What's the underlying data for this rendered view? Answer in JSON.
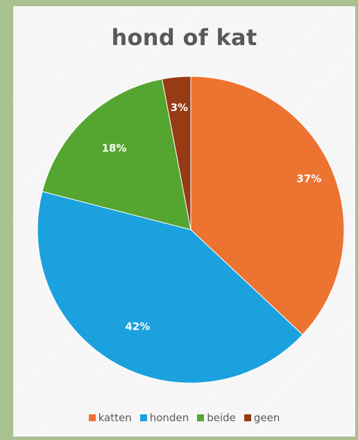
{
  "chart_data": {
    "type": "pie",
    "title": "hond of kat",
    "categories": [
      "katten",
      "honden",
      "beide",
      "geen"
    ],
    "values": [
      37,
      42,
      18,
      3
    ],
    "labels": [
      "37%",
      "42%",
      "18%",
      "3%"
    ],
    "colors": [
      "#ed7331",
      "#1ba1dd",
      "#55a531",
      "#973b15"
    ],
    "legend_position": "bottom",
    "start_angle": "12 o'clock",
    "direction": "clockwise"
  }
}
